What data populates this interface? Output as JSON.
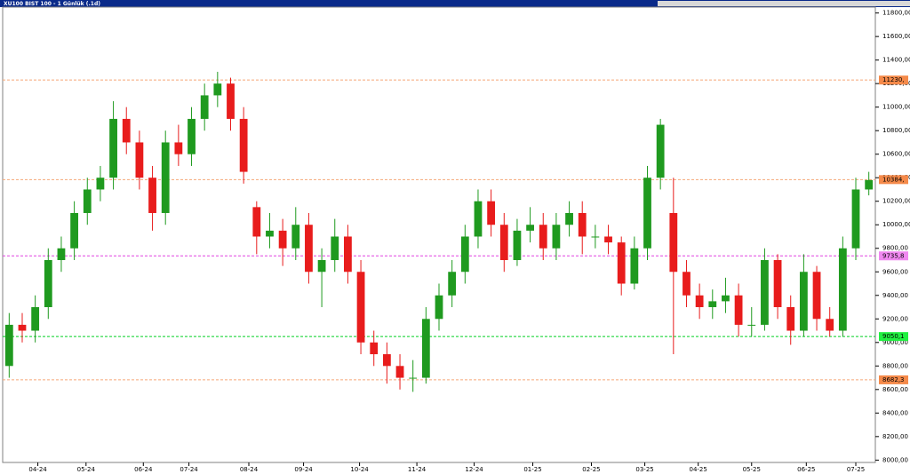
{
  "chart_data": {
    "type": "candlestick",
    "title": "XU100 BIST 100 - 1 Günlük (.1d)",
    "up_color": "#1f9a1f",
    "down_color": "#e81c1c",
    "xlim": [
      0,
      67
    ],
    "xticks": [
      {
        "value": 2.7,
        "label": "04-24"
      },
      {
        "value": 6.4,
        "label": "05-24"
      },
      {
        "value": 10.8,
        "label": "06-24"
      },
      {
        "value": 14.3,
        "label": "07-24"
      },
      {
        "value": 18.9,
        "label": "08-24"
      },
      {
        "value": 23.1,
        "label": "09-24"
      },
      {
        "value": 27.4,
        "label": "10-24"
      },
      {
        "value": 31.8,
        "label": "11-24"
      },
      {
        "value": 36.2,
        "label": "12-24"
      },
      {
        "value": 40.7,
        "label": "01-25"
      },
      {
        "value": 45.2,
        "label": "02-25"
      },
      {
        "value": 49.3,
        "label": "03-25"
      },
      {
        "value": 53.4,
        "label": "04-25"
      },
      {
        "value": 57.5,
        "label": "05-25"
      },
      {
        "value": 61.7,
        "label": "06-25"
      },
      {
        "value": 65.5,
        "label": "07-25"
      }
    ],
    "ylim": [
      7980,
      11850
    ],
    "yticks": [
      {
        "value": 8000,
        "label": "8000,00"
      },
      {
        "value": 8200,
        "label": "8200,00"
      },
      {
        "value": 8400,
        "label": "8400,00"
      },
      {
        "value": 8600,
        "label": "8600,00"
      },
      {
        "value": 8800,
        "label": "8800,00"
      },
      {
        "value": 9000,
        "label": "9000,00"
      },
      {
        "value": 9200,
        "label": "9200,00"
      },
      {
        "value": 9400,
        "label": "9400,00"
      },
      {
        "value": 9600,
        "label": "9600,00"
      },
      {
        "value": 9800,
        "label": "9800,00"
      },
      {
        "value": 10000,
        "label": "10000,00"
      },
      {
        "value": 10200,
        "label": "10200,00"
      },
      {
        "value": 10400,
        "label": "10400,00"
      },
      {
        "value": 10600,
        "label": "10600,00"
      },
      {
        "value": 10800,
        "label": "10800,00"
      },
      {
        "value": 11000,
        "label": "11000,00"
      },
      {
        "value": 11200,
        "label": "11200,00"
      },
      {
        "value": 11400,
        "label": "11400,00"
      },
      {
        "value": 11600,
        "label": "11600,00"
      },
      {
        "value": 11800,
        "label": "11800,00"
      }
    ],
    "open": [
      8800,
      9150,
      9100,
      9300,
      9700,
      9800,
      10100,
      10300,
      10400,
      10900,
      10700,
      10400,
      10100,
      10700,
      10600,
      10900,
      11100,
      11200,
      10900,
      10150,
      9900,
      9950,
      9800,
      10000,
      9600,
      9700,
      9900,
      9600,
      9000,
      8900,
      8800,
      8700,
      8700,
      9200,
      9400,
      9600,
      9900,
      10200,
      10000,
      9700,
      9950,
      10000,
      9800,
      10000,
      10100,
      9900,
      9900,
      9850,
      9500,
      9800,
      10400,
      10100,
      9600,
      9400,
      9300,
      9350,
      9400,
      9150,
      9150,
      9700,
      9300,
      9100,
      9600,
      9200,
      9100,
      9800,
      10300
    ],
    "high": [
      9250,
      9250,
      9400,
      9800,
      9900,
      10200,
      10400,
      10500,
      11050,
      11000,
      10800,
      10500,
      10800,
      10850,
      11000,
      11200,
      11300,
      11250,
      11000,
      10200,
      10100,
      10050,
      10150,
      10100,
      9800,
      10050,
      10000,
      9700,
      9100,
      9000,
      8900,
      8850,
      9300,
      9500,
      9700,
      10000,
      10300,
      10300,
      10100,
      10050,
      10150,
      10100,
      10100,
      10200,
      10200,
      10000,
      10000,
      9900,
      9900,
      10500,
      10900,
      10400,
      9700,
      9500,
      9450,
      9550,
      9500,
      9300,
      9800,
      9750,
      9400,
      9750,
      9650,
      9300,
      9900,
      10400,
      10450
    ],
    "low": [
      8700,
      9000,
      9000,
      9200,
      9600,
      9700,
      10000,
      10200,
      10300,
      10600,
      10300,
      9950,
      10000,
      10500,
      10500,
      10800,
      11000,
      10800,
      10350,
      9750,
      9800,
      9650,
      9700,
      9500,
      9300,
      9600,
      9500,
      8900,
      8800,
      8650,
      8600,
      8580,
      8650,
      9100,
      9300,
      9500,
      9800,
      9900,
      9600,
      9650,
      9850,
      9700,
      9700,
      9900,
      9750,
      9800,
      9750,
      9400,
      9450,
      9700,
      10300,
      8900,
      9300,
      9200,
      9200,
      9250,
      9050,
      9050,
      9100,
      9200,
      8980,
      9050,
      9100,
      9050,
      9050,
      9700,
      10250
    ],
    "close": [
      9150,
      9100,
      9300,
      9700,
      9800,
      10100,
      10300,
      10400,
      10900,
      10700,
      10400,
      10100,
      10700,
      10600,
      10900,
      11100,
      11200,
      10900,
      10450,
      9900,
      9950,
      9800,
      10000,
      9600,
      9700,
      9900,
      9600,
      9000,
      8900,
      8800,
      8700,
      8700,
      9200,
      9400,
      9600,
      9900,
      10200,
      10000,
      9700,
      9950,
      10000,
      9800,
      10000,
      10100,
      9900,
      9900,
      9850,
      9500,
      9800,
      10400,
      10850,
      9600,
      9400,
      9300,
      9350,
      9400,
      9150,
      9150,
      9700,
      9300,
      9100,
      9600,
      9200,
      9100,
      9800,
      10300,
      10380
    ],
    "levels": [
      {
        "value": 11230,
        "label": "11230,",
        "color": "#f5a878",
        "box": "#f58a4a"
      },
      {
        "value": 10384,
        "label": "10384,",
        "color": "#f5a878",
        "box": "#f58a4a"
      },
      {
        "value": 9735.8,
        "label": "9735,8",
        "color": "#e040e0",
        "box": "#f088f0"
      },
      {
        "value": 9050.1,
        "label": "9050,1",
        "color": "#00d020",
        "box": "#20f040"
      },
      {
        "value": 8682.3,
        "label": "8682,3",
        "color": "#f5a878",
        "box": "#f58a4a"
      }
    ]
  }
}
